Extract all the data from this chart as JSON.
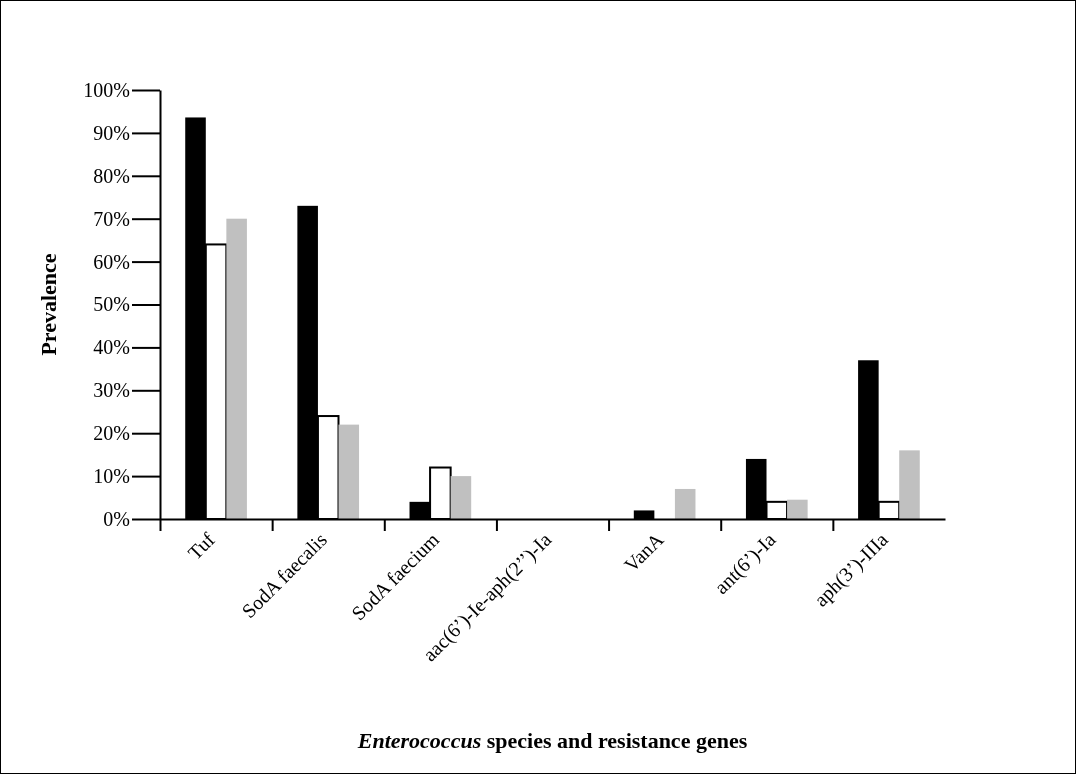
{
  "chart_data": {
    "type": "bar",
    "xlabel": "Enterococcus species and resistance genes",
    "ylabel": "Prevalence",
    "categories": [
      "Tuf",
      "SodA faecalis",
      "SodA faecium",
      "aac(6’)-Ie-aph(2’’)-Ia",
      "VanA",
      "ant(6’)-Ia",
      "aph(3’)-IIIa"
    ],
    "series": [
      {
        "color": "#000000",
        "values": [
          93.6,
          73,
          4,
          0,
          2,
          14,
          37
        ]
      },
      {
        "color": "#ffffff",
        "values": [
          64,
          24,
          12,
          0,
          0,
          4,
          4
        ]
      },
      {
        "color": "#c0c0c0",
        "values": [
          70,
          22,
          10,
          0,
          7,
          4.5,
          16
        ]
      }
    ],
    "ylim": [
      0,
      100
    ],
    "yticks": [
      {
        "value": 0,
        "label": "0%"
      },
      {
        "value": 10,
        "label": "10%"
      },
      {
        "value": 20,
        "label": "20%"
      },
      {
        "value": 30,
        "label": "30%"
      },
      {
        "value": 40,
        "label": "40%"
      },
      {
        "value": 50,
        "label": "50%"
      },
      {
        "value": 60,
        "label": "60%"
      },
      {
        "value": 70,
        "label": "70%"
      },
      {
        "value": 80,
        "label": "80%"
      },
      {
        "value": 90,
        "label": "90%"
      },
      {
        "value": 100,
        "label": "100%"
      }
    ],
    "grid": false
  }
}
